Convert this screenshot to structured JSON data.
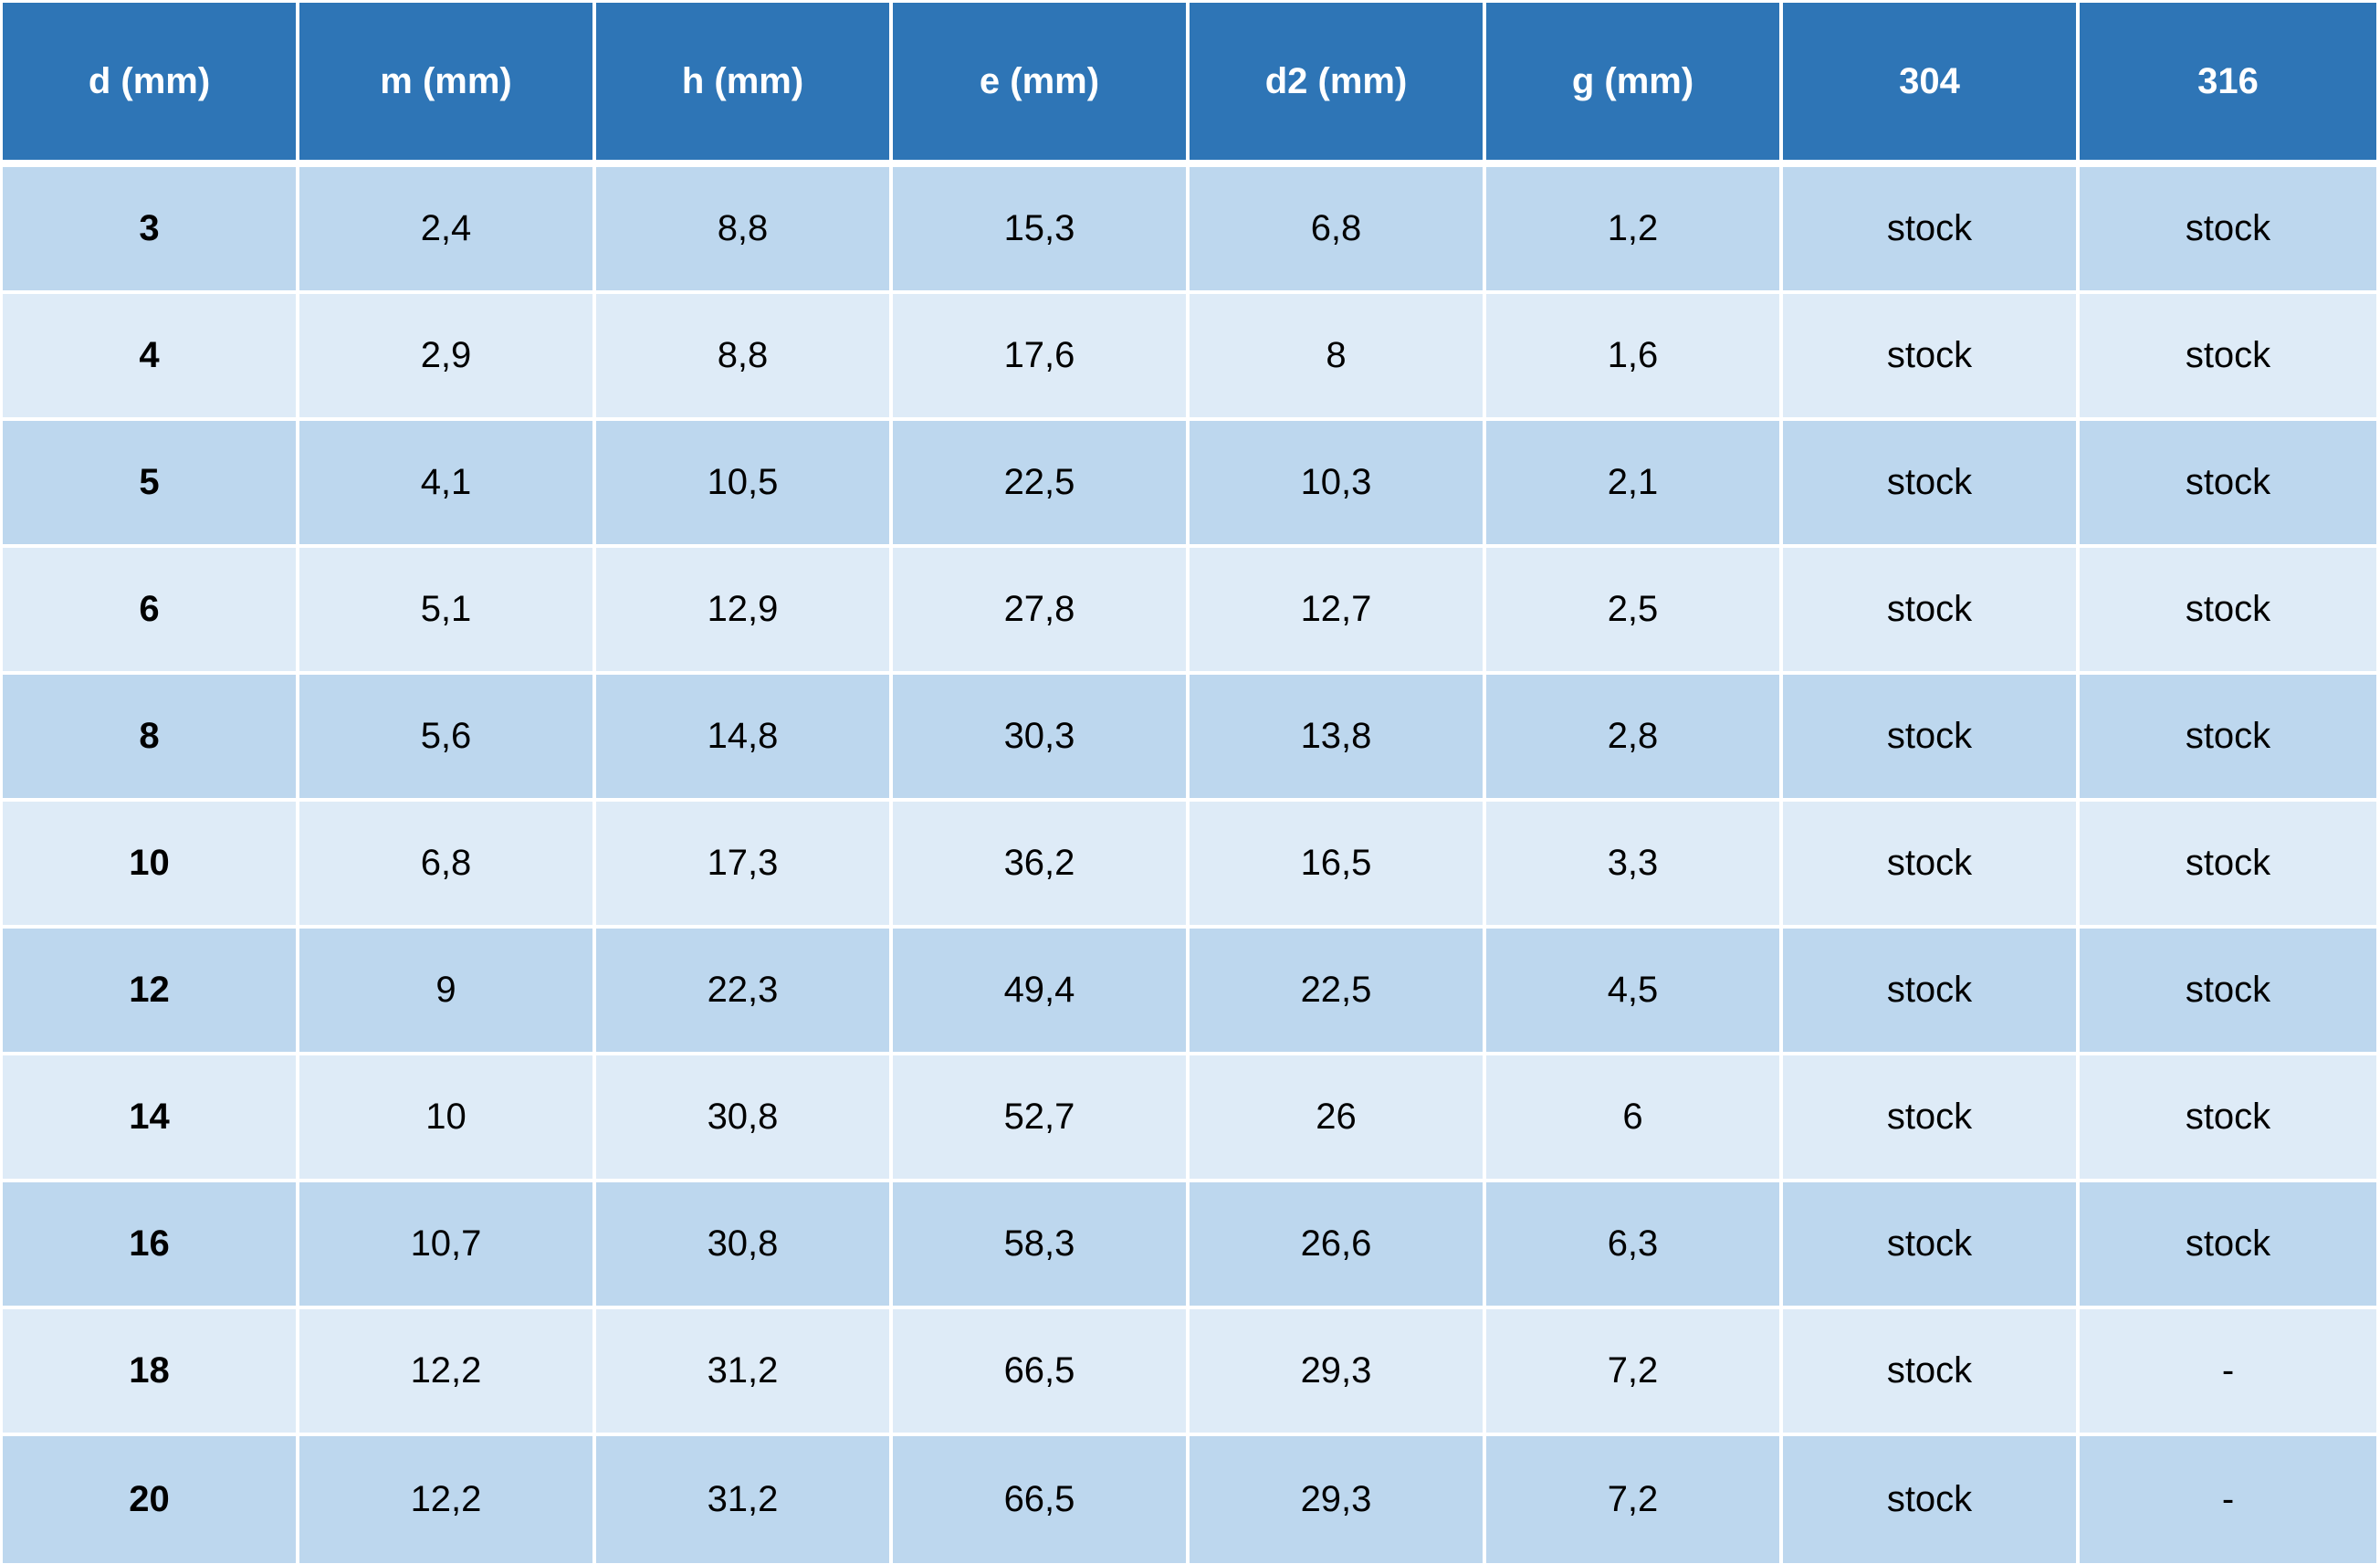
{
  "table": {
    "headers": [
      "d (mm)",
      "m (mm)",
      "h (mm)",
      "e (mm)",
      "d2 (mm)",
      "g (mm)",
      "304",
      "316"
    ],
    "rows": [
      [
        "3",
        "2,4",
        "8,8",
        "15,3",
        "6,8",
        "1,2",
        "stock",
        "stock"
      ],
      [
        "4",
        "2,9",
        "8,8",
        "17,6",
        "8",
        "1,6",
        "stock",
        "stock"
      ],
      [
        "5",
        "4,1",
        "10,5",
        "22,5",
        "10,3",
        "2,1",
        "stock",
        "stock"
      ],
      [
        "6",
        "5,1",
        "12,9",
        "27,8",
        "12,7",
        "2,5",
        "stock",
        "stock"
      ],
      [
        "8",
        "5,6",
        "14,8",
        "30,3",
        "13,8",
        "2,8",
        "stock",
        "stock"
      ],
      [
        "10",
        "6,8",
        "17,3",
        "36,2",
        "16,5",
        "3,3",
        "stock",
        "stock"
      ],
      [
        "12",
        "9",
        "22,3",
        "49,4",
        "22,5",
        "4,5",
        "stock",
        "stock"
      ],
      [
        "14",
        "10",
        "30,8",
        "52,7",
        "26",
        "6",
        "stock",
        "stock"
      ],
      [
        "16",
        "10,7",
        "30,8",
        "58,3",
        "26,6",
        "6,3",
        "stock",
        "stock"
      ],
      [
        "18",
        "12,2",
        "31,2",
        "66,5",
        "29,3",
        "7,2",
        "stock",
        "-"
      ],
      [
        "20",
        "12,2",
        "31,2",
        "66,5",
        "29,3",
        "7,2",
        "stock",
        "-"
      ]
    ]
  },
  "colors": {
    "header_bg": "#2e75b6",
    "row_odd_bg": "#bdd7ee",
    "row_even_bg": "#deebf7",
    "grid_lines": "#ffffff"
  }
}
